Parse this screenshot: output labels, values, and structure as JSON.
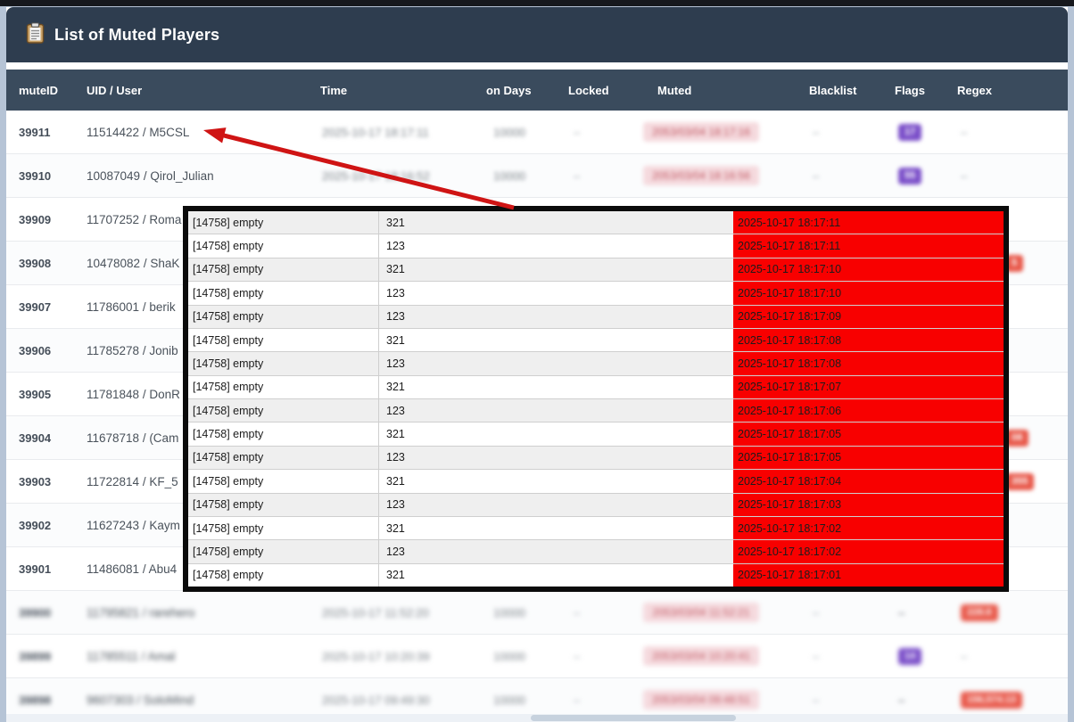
{
  "header": {
    "title": "List of Muted Players",
    "icon": "clipboard-icon"
  },
  "table": {
    "columns": [
      "muteID",
      "UID / User",
      "Time",
      "on Days",
      "Locked",
      "Muted",
      "Blacklist",
      "Flags",
      "Regex"
    ],
    "rows": [
      {
        "id": "39911",
        "user": "11514422 / M5CSL",
        "time": "2025-10-17 18:17:11",
        "days": "10000",
        "locked": "–",
        "muted": "2053/03/04 18:17:16",
        "blacklist": "–",
        "flags": "17",
        "regex": "–",
        "blur": "cols"
      },
      {
        "id": "39910",
        "user": "10087049 / Qirol_Julian",
        "time": "2025-10-17 18:16:52",
        "days": "10000",
        "locked": "–",
        "muted": "2053/03/04 18:16:56",
        "blacklist": "–",
        "flags": "55",
        "regex": "–",
        "blur": "cols"
      },
      {
        "id": "39909",
        "user": "11707252 / Roma"
      },
      {
        "id": "39908",
        "user": "10478082 / ShaK",
        "regex": "5",
        "partial": true
      },
      {
        "id": "39907",
        "user": "11786001 / berik"
      },
      {
        "id": "39906",
        "user": "11785278 / Jonib"
      },
      {
        "id": "39905",
        "user": "11781848 / DonR"
      },
      {
        "id": "39904",
        "user": "11678718 / (Cam",
        "regex": "08",
        "partial": true
      },
      {
        "id": "39903",
        "user": "11722814 / KF_5",
        "regex": "355",
        "partial": true
      },
      {
        "id": "39902",
        "user": "11627243 / Kaym"
      },
      {
        "id": "39901",
        "user": "11486081 / Abu4"
      },
      {
        "id": "39900",
        "user": "11795821 / rarehero",
        "time": "2025-10-17 11:52:20",
        "days": "10000",
        "locked": "–",
        "muted": "2053/03/04 11:52:21",
        "blacklist": "–",
        "flags": "–",
        "regex": "228.8",
        "blur": "all"
      },
      {
        "id": "39899",
        "user": "11785511 / Amal",
        "time": "2025-10-17 10:20:39",
        "days": "10000",
        "locked": "–",
        "muted": "2053/03/04 10:20:41",
        "blacklist": "–",
        "flags": "14",
        "regex": "–",
        "blur": "all"
      },
      {
        "id": "39898",
        "user": "9607303 / SoloMind",
        "time": "2025-10-17 09:49:30",
        "days": "10000",
        "locked": "–",
        "muted": "2053/03/04 09:48:51",
        "blacklist": "–",
        "flags": "–",
        "regex": "156,574.13",
        "blur": "all"
      }
    ]
  },
  "popup": {
    "rows": [
      {
        "label": "[14758] empty",
        "value": "321",
        "time": "2025-10-17 18:17:11"
      },
      {
        "label": "[14758] empty",
        "value": "123",
        "time": "2025-10-17 18:17:11"
      },
      {
        "label": "[14758] empty",
        "value": "321",
        "time": "2025-10-17 18:17:10"
      },
      {
        "label": "[14758] empty",
        "value": "123",
        "time": "2025-10-17 18:17:10"
      },
      {
        "label": "[14758] empty",
        "value": "123",
        "time": "2025-10-17 18:17:09"
      },
      {
        "label": "[14758] empty",
        "value": "321",
        "time": "2025-10-17 18:17:08"
      },
      {
        "label": "[14758] empty",
        "value": "123",
        "time": "2025-10-17 18:17:08"
      },
      {
        "label": "[14758] empty",
        "value": "321",
        "time": "2025-10-17 18:17:07"
      },
      {
        "label": "[14758] empty",
        "value": "123",
        "time": "2025-10-17 18:17:06"
      },
      {
        "label": "[14758] empty",
        "value": "321",
        "time": "2025-10-17 18:17:05"
      },
      {
        "label": "[14758] empty",
        "value": "123",
        "time": "2025-10-17 18:17:05"
      },
      {
        "label": "[14758] empty",
        "value": "321",
        "time": "2025-10-17 18:17:04"
      },
      {
        "label": "[14758] empty",
        "value": "123",
        "time": "2025-10-17 18:17:03"
      },
      {
        "label": "[14758] empty",
        "value": "321",
        "time": "2025-10-17 18:17:02"
      },
      {
        "label": "[14758] empty",
        "value": "123",
        "time": "2025-10-17 18:17:02"
      },
      {
        "label": "[14758] empty",
        "value": "321",
        "time": "2025-10-17 18:17:01"
      }
    ]
  },
  "colors": {
    "header_bar": "#2e3d4f",
    "column_bar": "#3a4b5d",
    "muted_badge_bg": "#f5dade",
    "muted_badge_text": "#c05560",
    "flags_badge": "#7b4fc9",
    "regex_badge": "#e8584a",
    "popup_highlight": "#f80000",
    "arrow": "#cf1414"
  }
}
